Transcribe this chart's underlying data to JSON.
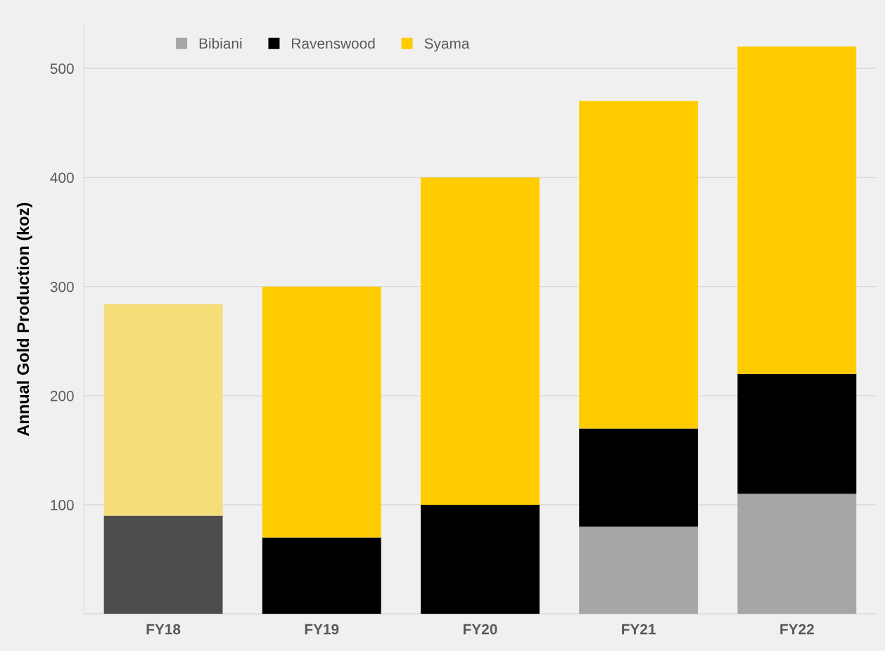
{
  "chart_data": {
    "type": "bar",
    "stacked": true,
    "ylabel": "Annual Gold Production (koz)",
    "categories": [
      "FY18",
      "FY19",
      "FY20",
      "FY21",
      "FY22"
    ],
    "series": [
      {
        "name": "Bibiani",
        "color": "#a6a6a6",
        "values": [
          null,
          null,
          null,
          80,
          110
        ]
      },
      {
        "name": "Ravenswood",
        "color": "#000000",
        "colors": [
          "#4d4d4d",
          "#000000",
          "#000000",
          "#000000",
          "#000000"
        ],
        "values": [
          90,
          70,
          100,
          90,
          110
        ]
      },
      {
        "name": "Syama",
        "color": "#ffcc00",
        "colors": [
          "#f5de7a",
          "#ffcc00",
          "#ffcc00",
          "#ffcc00",
          "#ffcc00"
        ],
        "values": [
          194,
          230,
          300,
          300,
          300
        ]
      }
    ],
    "ylim": [
      0,
      540
    ],
    "yticks": [
      {
        "value": 0,
        "label": null
      },
      100,
      200,
      300,
      400,
      500
    ],
    "grid": "y",
    "legend": "top left"
  }
}
